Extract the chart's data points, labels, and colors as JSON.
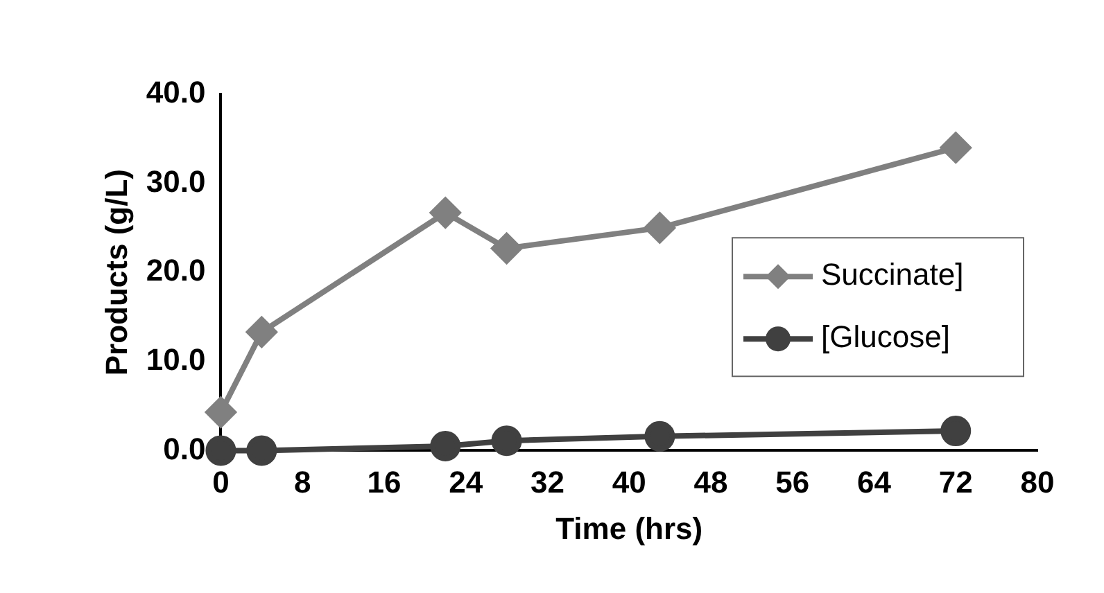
{
  "chart_data": {
    "type": "line",
    "xlabel": "Time (hrs)",
    "ylabel": "Products (g/L)",
    "xlim": [
      0,
      80
    ],
    "xticks": [
      0,
      8,
      16,
      24,
      32,
      40,
      48,
      56,
      64,
      72,
      80
    ],
    "ylim": [
      0,
      40
    ],
    "yticks": [
      {
        "value": 0,
        "label": "0.0"
      },
      {
        "value": 10,
        "label": "10.0"
      },
      {
        "value": 20,
        "label": "20.0"
      },
      {
        "value": 30,
        "label": "30.0"
      },
      {
        "value": 40,
        "label": "40.0"
      }
    ],
    "x": [
      0,
      4,
      22,
      28,
      43,
      72
    ],
    "series": [
      {
        "name": "Succinate]",
        "color": "#808080",
        "marker": "diamond",
        "values": [
          4.3,
          13.3,
          26.7,
          22.7,
          25,
          34
        ]
      },
      {
        "name": "[Glucose]",
        "color": "#404040",
        "marker": "circle",
        "values": [
          0,
          0,
          0.5,
          1.1,
          1.6,
          2.2
        ]
      }
    ],
    "legend": "right",
    "grid": false
  }
}
